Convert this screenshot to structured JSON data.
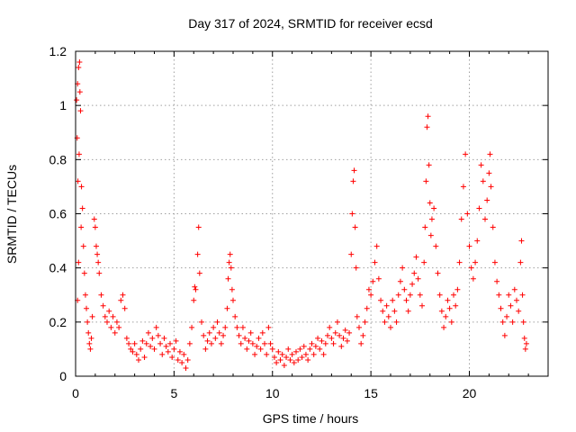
{
  "chart_data": {
    "type": "scatter",
    "title": "Day 317 of 2024, SRMTID for receiver ecsd",
    "xlabel": "GPS time / hours",
    "ylabel": "SRMTID / TECUs",
    "xlim": [
      0,
      24
    ],
    "ylim": [
      0,
      1.2
    ],
    "x_ticks": [
      0,
      5,
      10,
      15,
      20
    ],
    "x_tick_labels": [
      "0",
      "5",
      "10",
      "15",
      "20"
    ],
    "y_ticks": [
      0,
      0.2,
      0.4,
      0.6,
      0.8,
      1.0,
      1.2
    ],
    "y_tick_labels": [
      "0",
      "0.2",
      "0.4",
      "0.6",
      "0.8",
      "1",
      "1.2"
    ],
    "grid": true,
    "marker": "plus",
    "color": "#ff0000",
    "series": [
      {
        "name": "SRMTID",
        "points": [
          [
            0.05,
            1.02
          ],
          [
            0.1,
            1.08
          ],
          [
            0.15,
            1.14
          ],
          [
            0.2,
            1.16
          ],
          [
            0.22,
            1.05
          ],
          [
            0.25,
            0.98
          ],
          [
            0.08,
            0.88
          ],
          [
            0.18,
            0.82
          ],
          [
            0.12,
            0.72
          ],
          [
            0.3,
            0.7
          ],
          [
            0.35,
            0.62
          ],
          [
            0.28,
            0.55
          ],
          [
            0.4,
            0.48
          ],
          [
            0.15,
            0.42
          ],
          [
            0.45,
            0.38
          ],
          [
            0.5,
            0.3
          ],
          [
            0.1,
            0.28
          ],
          [
            0.55,
            0.25
          ],
          [
            0.6,
            0.2
          ],
          [
            0.65,
            0.16
          ],
          [
            0.7,
            0.12
          ],
          [
            0.75,
            0.1
          ],
          [
            0.8,
            0.14
          ],
          [
            0.85,
            0.22
          ],
          [
            0.95,
            0.58
          ],
          [
            1.0,
            0.55
          ],
          [
            1.05,
            0.48
          ],
          [
            1.1,
            0.45
          ],
          [
            1.15,
            0.42
          ],
          [
            1.2,
            0.38
          ],
          [
            1.3,
            0.3
          ],
          [
            1.4,
            0.26
          ],
          [
            1.5,
            0.22
          ],
          [
            1.6,
            0.2
          ],
          [
            1.7,
            0.24
          ],
          [
            1.8,
            0.18
          ],
          [
            1.9,
            0.22
          ],
          [
            2.0,
            0.16
          ],
          [
            2.1,
            0.2
          ],
          [
            2.2,
            0.18
          ],
          [
            2.3,
            0.28
          ],
          [
            2.4,
            0.3
          ],
          [
            2.5,
            0.25
          ],
          [
            2.6,
            0.14
          ],
          [
            2.7,
            0.12
          ],
          [
            2.8,
            0.1
          ],
          [
            2.9,
            0.09
          ],
          [
            3.0,
            0.12
          ],
          [
            3.1,
            0.08
          ],
          [
            3.2,
            0.06
          ],
          [
            3.3,
            0.1
          ],
          [
            3.4,
            0.13
          ],
          [
            3.5,
            0.07
          ],
          [
            3.6,
            0.12
          ],
          [
            3.7,
            0.16
          ],
          [
            3.8,
            0.11
          ],
          [
            3.9,
            0.14
          ],
          [
            4.0,
            0.1
          ],
          [
            4.1,
            0.18
          ],
          [
            4.2,
            0.15
          ],
          [
            4.3,
            0.12
          ],
          [
            4.4,
            0.08
          ],
          [
            4.5,
            0.14
          ],
          [
            4.6,
            0.11
          ],
          [
            4.7,
            0.09
          ],
          [
            4.8,
            0.12
          ],
          [
            4.9,
            0.07
          ],
          [
            5.0,
            0.1
          ],
          [
            5.1,
            0.13
          ],
          [
            5.2,
            0.06
          ],
          [
            5.3,
            0.09
          ],
          [
            5.4,
            0.05
          ],
          [
            5.5,
            0.08
          ],
          [
            5.6,
            0.03
          ],
          [
            5.7,
            0.06
          ],
          [
            5.8,
            0.12
          ],
          [
            5.9,
            0.18
          ],
          [
            6.0,
            0.28
          ],
          [
            6.05,
            0.33
          ],
          [
            6.1,
            0.32
          ],
          [
            6.2,
            0.45
          ],
          [
            6.25,
            0.55
          ],
          [
            6.3,
            0.38
          ],
          [
            6.4,
            0.2
          ],
          [
            6.5,
            0.15
          ],
          [
            6.6,
            0.1
          ],
          [
            6.7,
            0.13
          ],
          [
            6.8,
            0.16
          ],
          [
            6.9,
            0.12
          ],
          [
            7.0,
            0.18
          ],
          [
            7.1,
            0.14
          ],
          [
            7.2,
            0.2
          ],
          [
            7.3,
            0.16
          ],
          [
            7.4,
            0.12
          ],
          [
            7.5,
            0.15
          ],
          [
            7.6,
            0.18
          ],
          [
            7.7,
            0.25
          ],
          [
            7.75,
            0.36
          ],
          [
            7.8,
            0.42
          ],
          [
            7.85,
            0.45
          ],
          [
            7.9,
            0.4
          ],
          [
            7.95,
            0.32
          ],
          [
            8.0,
            0.28
          ],
          [
            8.1,
            0.22
          ],
          [
            8.2,
            0.18
          ],
          [
            8.3,
            0.15
          ],
          [
            8.4,
            0.12
          ],
          [
            8.5,
            0.18
          ],
          [
            8.6,
            0.14
          ],
          [
            8.7,
            0.1
          ],
          [
            8.8,
            0.13
          ],
          [
            8.9,
            0.16
          ],
          [
            9.0,
            0.12
          ],
          [
            9.1,
            0.08
          ],
          [
            9.2,
            0.11
          ],
          [
            9.3,
            0.14
          ],
          [
            9.4,
            0.1
          ],
          [
            9.5,
            0.16
          ],
          [
            9.6,
            0.12
          ],
          [
            9.7,
            0.08
          ],
          [
            9.8,
            0.18
          ],
          [
            9.9,
            0.12
          ],
          [
            10.0,
            0.1
          ],
          [
            10.1,
            0.07
          ],
          [
            10.2,
            0.05
          ],
          [
            10.3,
            0.09
          ],
          [
            10.4,
            0.06
          ],
          [
            10.5,
            0.08
          ],
          [
            10.6,
            0.04
          ],
          [
            10.7,
            0.07
          ],
          [
            10.8,
            0.1
          ],
          [
            10.9,
            0.06
          ],
          [
            11.0,
            0.08
          ],
          [
            11.1,
            0.05
          ],
          [
            11.2,
            0.09
          ],
          [
            11.3,
            0.06
          ],
          [
            11.4,
            0.1
          ],
          [
            11.5,
            0.07
          ],
          [
            11.6,
            0.11
          ],
          [
            11.7,
            0.08
          ],
          [
            11.8,
            0.06
          ],
          [
            11.9,
            0.1
          ],
          [
            12.0,
            0.12
          ],
          [
            12.1,
            0.08
          ],
          [
            12.2,
            0.11
          ],
          [
            12.3,
            0.14
          ],
          [
            12.4,
            0.1
          ],
          [
            12.5,
            0.13
          ],
          [
            12.6,
            0.08
          ],
          [
            12.7,
            0.12
          ],
          [
            12.8,
            0.15
          ],
          [
            12.9,
            0.18
          ],
          [
            13.0,
            0.14
          ],
          [
            13.1,
            0.12
          ],
          [
            13.2,
            0.16
          ],
          [
            13.3,
            0.2
          ],
          [
            13.4,
            0.15
          ],
          [
            13.5,
            0.11
          ],
          [
            13.6,
            0.14
          ],
          [
            13.7,
            0.17
          ],
          [
            13.8,
            0.13
          ],
          [
            13.9,
            0.16
          ],
          [
            14.0,
            0.45
          ],
          [
            14.05,
            0.6
          ],
          [
            14.1,
            0.72
          ],
          [
            14.15,
            0.76
          ],
          [
            14.2,
            0.55
          ],
          [
            14.25,
            0.4
          ],
          [
            14.3,
            0.22
          ],
          [
            14.4,
            0.18
          ],
          [
            14.5,
            0.12
          ],
          [
            14.6,
            0.15
          ],
          [
            14.7,
            0.2
          ],
          [
            14.8,
            0.25
          ],
          [
            14.9,
            0.32
          ],
          [
            15.0,
            0.3
          ],
          [
            15.1,
            0.35
          ],
          [
            15.2,
            0.42
          ],
          [
            15.3,
            0.48
          ],
          [
            15.4,
            0.36
          ],
          [
            15.5,
            0.28
          ],
          [
            15.6,
            0.24
          ],
          [
            15.7,
            0.2
          ],
          [
            15.8,
            0.26
          ],
          [
            15.9,
            0.22
          ],
          [
            16.0,
            0.18
          ],
          [
            16.1,
            0.28
          ],
          [
            16.2,
            0.24
          ],
          [
            16.3,
            0.2
          ],
          [
            16.4,
            0.3
          ],
          [
            16.5,
            0.35
          ],
          [
            16.6,
            0.4
          ],
          [
            16.7,
            0.32
          ],
          [
            16.8,
            0.28
          ],
          [
            16.9,
            0.24
          ],
          [
            17.0,
            0.3
          ],
          [
            17.1,
            0.34
          ],
          [
            17.2,
            0.38
          ],
          [
            17.3,
            0.44
          ],
          [
            17.4,
            0.36
          ],
          [
            17.5,
            0.3
          ],
          [
            17.6,
            0.26
          ],
          [
            17.7,
            0.42
          ],
          [
            17.75,
            0.55
          ],
          [
            17.8,
            0.72
          ],
          [
            17.85,
            0.92
          ],
          [
            17.9,
            0.96
          ],
          [
            17.95,
            0.78
          ],
          [
            18.0,
            0.64
          ],
          [
            18.05,
            0.52
          ],
          [
            18.1,
            0.58
          ],
          [
            18.2,
            0.62
          ],
          [
            18.3,
            0.48
          ],
          [
            18.4,
            0.38
          ],
          [
            18.5,
            0.3
          ],
          [
            18.6,
            0.24
          ],
          [
            18.7,
            0.18
          ],
          [
            18.8,
            0.22
          ],
          [
            18.9,
            0.28
          ],
          [
            19.0,
            0.25
          ],
          [
            19.1,
            0.2
          ],
          [
            19.2,
            0.3
          ],
          [
            19.3,
            0.26
          ],
          [
            19.4,
            0.32
          ],
          [
            19.5,
            0.42
          ],
          [
            19.6,
            0.58
          ],
          [
            19.7,
            0.7
          ],
          [
            19.8,
            0.82
          ],
          [
            19.9,
            0.6
          ],
          [
            20.0,
            0.48
          ],
          [
            20.1,
            0.4
          ],
          [
            20.2,
            0.36
          ],
          [
            20.3,
            0.42
          ],
          [
            20.4,
            0.5
          ],
          [
            20.5,
            0.62
          ],
          [
            20.6,
            0.78
          ],
          [
            20.7,
            0.72
          ],
          [
            20.8,
            0.58
          ],
          [
            20.9,
            0.65
          ],
          [
            21.0,
            0.75
          ],
          [
            21.05,
            0.82
          ],
          [
            21.1,
            0.7
          ],
          [
            21.2,
            0.55
          ],
          [
            21.3,
            0.42
          ],
          [
            21.4,
            0.35
          ],
          [
            21.5,
            0.3
          ],
          [
            21.6,
            0.25
          ],
          [
            21.7,
            0.2
          ],
          [
            21.8,
            0.15
          ],
          [
            21.9,
            0.22
          ],
          [
            22.0,
            0.3
          ],
          [
            22.1,
            0.26
          ],
          [
            22.2,
            0.2
          ],
          [
            22.3,
            0.32
          ],
          [
            22.4,
            0.28
          ],
          [
            22.5,
            0.24
          ],
          [
            22.6,
            0.42
          ],
          [
            22.65,
            0.5
          ],
          [
            22.7,
            0.3
          ],
          [
            22.75,
            0.2
          ],
          [
            22.8,
            0.14
          ],
          [
            22.85,
            0.1
          ],
          [
            22.9,
            0.12
          ]
        ]
      }
    ]
  }
}
